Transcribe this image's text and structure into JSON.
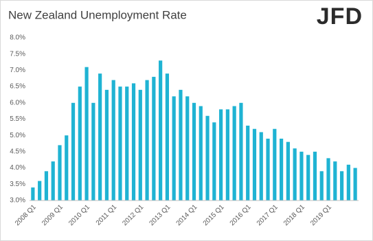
{
  "chart_data": {
    "type": "bar",
    "title": "New Zealand Unemployment Rate",
    "logo": "JFD",
    "categories": [
      "2008 Q1",
      null,
      null,
      null,
      "2009 Q1",
      null,
      null,
      null,
      "2010 Q1",
      null,
      null,
      null,
      "2011 Q1",
      null,
      null,
      null,
      "2012 Q1",
      null,
      null,
      null,
      "2013 Q1",
      null,
      null,
      null,
      "2014 Q1",
      null,
      null,
      null,
      "2015 Q1",
      null,
      null,
      null,
      "2016 Q1",
      null,
      null,
      null,
      "2017 Q1",
      null,
      null,
      null,
      "2018 Q1",
      null,
      null,
      null,
      "2019 Q1",
      null,
      null,
      null,
      null
    ],
    "values": [
      3.4,
      3.6,
      3.9,
      4.2,
      4.7,
      5.0,
      6.0,
      6.5,
      7.1,
      6.0,
      6.9,
      6.4,
      6.7,
      6.5,
      6.5,
      6.6,
      6.4,
      6.7,
      6.8,
      7.3,
      6.9,
      6.2,
      6.4,
      6.2,
      6.0,
      5.9,
      5.6,
      5.4,
      5.8,
      5.8,
      5.9,
      6.0,
      5.3,
      5.2,
      5.1,
      4.9,
      5.2,
      4.9,
      4.8,
      4.6,
      4.5,
      4.4,
      4.5,
      3.9,
      4.3,
      4.2,
      3.9,
      4.1,
      4.0
    ],
    "color": "#1fb3d3",
    "ylim": [
      3.0,
      8.0
    ],
    "yticks": [
      {
        "value": 3.0,
        "label": "3.0%"
      },
      {
        "value": 3.5,
        "label": "3.5%"
      },
      {
        "value": 4.0,
        "label": "4.0%"
      },
      {
        "value": 4.5,
        "label": "4.5%"
      },
      {
        "value": 5.0,
        "label": "5.0%"
      },
      {
        "value": 5.5,
        "label": "5.5%"
      },
      {
        "value": 6.0,
        "label": "6.0%"
      },
      {
        "value": 6.5,
        "label": "6.5%"
      },
      {
        "value": 7.0,
        "label": "7.0%"
      },
      {
        "value": 7.5,
        "label": "7.5%"
      },
      {
        "value": 8.0,
        "label": "8.0%"
      }
    ],
    "grid": false
  }
}
